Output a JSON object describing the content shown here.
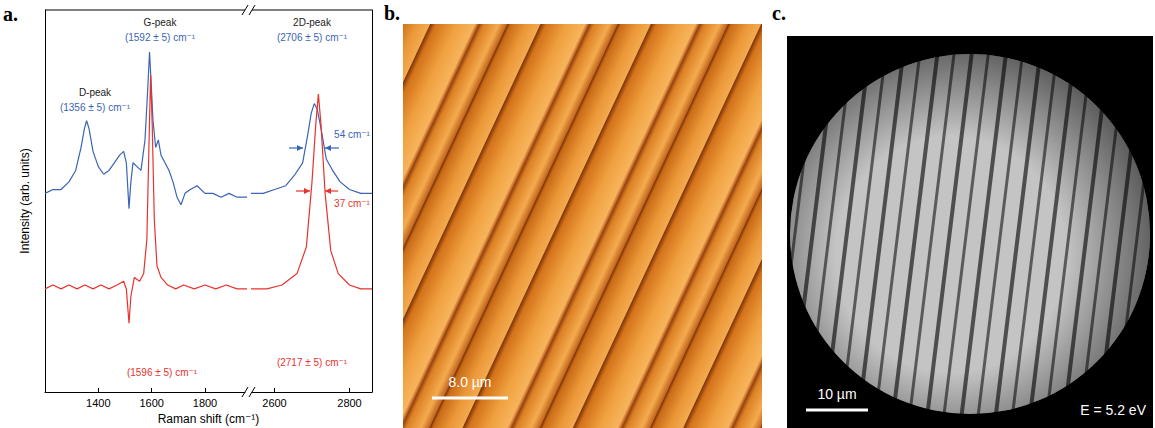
{
  "chart_data": {
    "type": "line",
    "panel_label": "a.",
    "x_label": "Raman shift (cm⁻¹)",
    "y_label": "Intensity (arb. units)",
    "x_segments": [
      {
        "xlim": [
          1200,
          1950
        ],
        "xticks": [
          1400,
          1600,
          1800
        ]
      },
      {
        "xlim": [
          2540,
          2860
        ],
        "xticks": [
          2600,
          2800
        ]
      }
    ],
    "ylim": [
      0,
      100
    ],
    "tick_labels": "x",
    "grid": false,
    "series": [
      {
        "color": "#3a64b5",
        "x": [
          1200,
          1230,
          1260,
          1290,
          1315,
          1335,
          1348,
          1356,
          1365,
          1380,
          1400,
          1420,
          1440,
          1460,
          1480,
          1495,
          1505,
          1515,
          1522,
          1530,
          1545,
          1560,
          1575,
          1585,
          1592,
          1598,
          1605,
          1615,
          1625,
          1635,
          1650,
          1665,
          1680,
          1695,
          1710,
          1725,
          1745,
          1770,
          1800,
          1830,
          1860,
          1890,
          1920,
          1950,
          2540,
          2570,
          2600,
          2630,
          2655,
          2675,
          2688,
          2698,
          2706,
          2714,
          2724,
          2738,
          2755,
          2775,
          2800,
          2830,
          2860
        ],
        "values": [
          52,
          53,
          53,
          55,
          58,
          64,
          69,
          71,
          69,
          63,
          59,
          57,
          58,
          60,
          62,
          63,
          60,
          48,
          55,
          60,
          59,
          58,
          66,
          79,
          89,
          81,
          71,
          64,
          66,
          62,
          60,
          58,
          55,
          51,
          49,
          52,
          53,
          54,
          52,
          52,
          51,
          52,
          51,
          51,
          52,
          52,
          53,
          54,
          57,
          60,
          67,
          73,
          75.5,
          74,
          69,
          61,
          58,
          55,
          53,
          52,
          52
        ]
      },
      {
        "color": "#e8322d",
        "x": [
          1200,
          1230,
          1260,
          1290,
          1320,
          1350,
          1380,
          1410,
          1440,
          1470,
          1495,
          1505,
          1515,
          1522,
          1535,
          1555,
          1570,
          1582,
          1590,
          1596,
          1602,
          1610,
          1620,
          1635,
          1660,
          1690,
          1720,
          1760,
          1800,
          1840,
          1880,
          1920,
          1950,
          2540,
          2580,
          2620,
          2660,
          2685,
          2700,
          2710,
          2717,
          2724,
          2735,
          2750,
          2770,
          2800,
          2830,
          2860
        ],
        "values": [
          27,
          28,
          27,
          28,
          27,
          28,
          27,
          28,
          27,
          28,
          29,
          27,
          18,
          25,
          30,
          29,
          31,
          40,
          65,
          83,
          70,
          45,
          33,
          30,
          28,
          27,
          28,
          27,
          28,
          27,
          28,
          27,
          27,
          27,
          27,
          28,
          31,
          38,
          55,
          70,
          78,
          70,
          52,
          37,
          31,
          28,
          27,
          27
        ]
      }
    ],
    "annotations": [
      {
        "text": "D-peak",
        "color": "#222222"
      },
      {
        "text": "(1356 ± 5) cm⁻¹",
        "color": "#3a64b5"
      },
      {
        "text": "G-peak",
        "color": "#222222"
      },
      {
        "text": "(1592 ± 5) cm⁻¹",
        "color": "#3a64b5"
      },
      {
        "text": "2D-peak",
        "color": "#222222"
      },
      {
        "text": "(2706 ± 5) cm⁻¹",
        "color": "#3a64b5"
      },
      {
        "text": "54 cm⁻¹",
        "color": "#3a64b5"
      },
      {
        "text": "37 cm⁻¹",
        "color": "#e8322d"
      },
      {
        "text": "(1596 ± 5) cm⁻¹",
        "color": "#e8322d"
      },
      {
        "text": "(2717 ± 5) cm⁻¹",
        "color": "#e8322d"
      }
    ]
  },
  "images": [
    {
      "panel_label": "b.",
      "scale_bar": "8.0 µm"
    },
    {
      "panel_label": "c.",
      "scale_bar": "10 µm",
      "annotation": "E = 5.2 eV"
    }
  ]
}
